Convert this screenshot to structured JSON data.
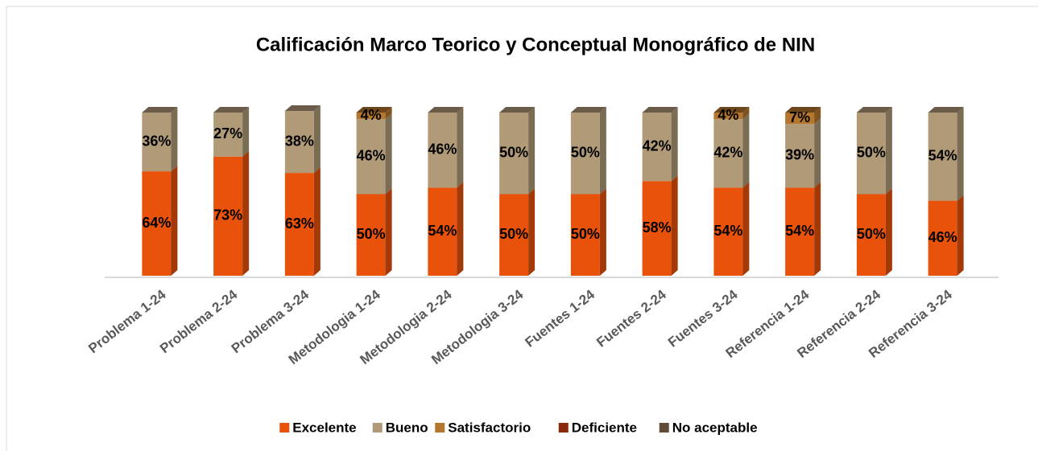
{
  "chart_data": {
    "type": "stacked_bar_3d",
    "title": "Calificación Marco Teorico y Conceptual Monográfico de NIN",
    "categories": [
      "Problema 1-24",
      "Problema 2-24",
      "Problema 3-24",
      "Metodologia 1-24",
      "Metodologia 2-24",
      "Metodologia 3-24",
      "Fuentes 1-24",
      "Fuentes 2-24",
      "Fuentes 3-24",
      "Referencia 1-24",
      "Referencia 2-24",
      "Referencia 3-24"
    ],
    "ylim": [
      0,
      100
    ],
    "legend": "bottom",
    "series": [
      {
        "name": "Excelente",
        "color": "#e8520a",
        "values": [
          64,
          73,
          63,
          50,
          54,
          50,
          50,
          58,
          54,
          54,
          50,
          46
        ],
        "value_labels": [
          "64%",
          "73%",
          "63%",
          "50%",
          "54%",
          "50%",
          "50%",
          "58%",
          "54%",
          "54%",
          "50%",
          "46%"
        ]
      },
      {
        "name": "Bueno",
        "color": "#b09a78",
        "values": [
          36,
          27,
          38,
          46,
          46,
          50,
          50,
          42,
          42,
          39,
          50,
          54
        ],
        "value_labels": [
          "36%",
          "27%",
          "38%",
          "46%",
          "46%",
          "50%",
          "50%",
          "42%",
          "42%",
          "39%",
          "50%",
          "54%"
        ]
      },
      {
        "name": "Satisfactorio",
        "color": "#b5762d",
        "values": [
          0,
          0,
          0,
          4,
          0,
          0,
          0,
          0,
          4,
          7,
          0,
          0
        ],
        "value_labels": [
          null,
          null,
          null,
          "4%",
          null,
          null,
          null,
          null,
          "4%",
          "7%",
          null,
          null
        ]
      },
      {
        "name": "Deficiente",
        "color": "#8b2a0a",
        "values": [
          0,
          0,
          0,
          0,
          0,
          0,
          0,
          0,
          0,
          0,
          0,
          0
        ]
      },
      {
        "name": "No aceptable",
        "color": "#5e4b38",
        "values": [
          0,
          0,
          0,
          0,
          0,
          0,
          0,
          0,
          0,
          0,
          0,
          0
        ]
      }
    ]
  }
}
